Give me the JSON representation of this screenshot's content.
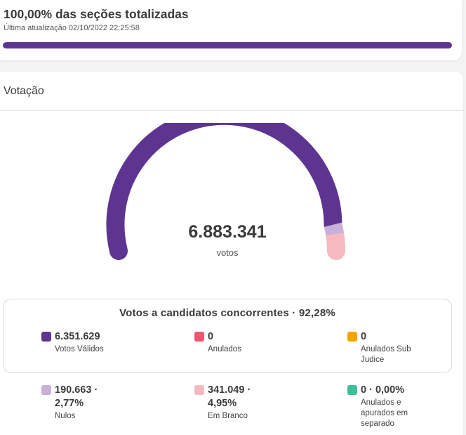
{
  "header": {
    "title": "100,00% das seções totalizadas",
    "updated": "Última atualização 02/10/2022 22:25:58",
    "progress_fraction": 1.0,
    "progress_color": "#5d3591"
  },
  "voting": {
    "section_title": "Votação",
    "total": "6.883.341",
    "total_unit": "votos",
    "gauge_fractions": {
      "valid": 0.9228,
      "nulos": 0.0277,
      "branco": 0.0495
    },
    "gauge_colors": {
      "valid": "#5d3591",
      "nulos": "#c8b1d8",
      "branco": "#f7b9c0",
      "track": "#eeeeee"
    }
  },
  "candidates": {
    "title": "Votos a candidatos concorrentes · 92,28%",
    "items": [
      {
        "value": "6.351.629",
        "label": "Votos Válidos",
        "color": "#5d3591"
      },
      {
        "value": "0",
        "label": "Anulados",
        "color": "#f0566e"
      },
      {
        "value": "0",
        "label": "Anulados Sub Judice",
        "color": "#f5a100"
      }
    ]
  },
  "others": {
    "items": [
      {
        "value": "190.663 · 2,77%",
        "label": "Nulos",
        "color": "#c8b1d8"
      },
      {
        "value": "341.049 · 4,95%",
        "label": "Em Branco",
        "color": "#f7b9c0"
      },
      {
        "value": "0 · 0,00%",
        "label": "Anulados e apurados em separado",
        "color": "#3dbf9a"
      }
    ]
  }
}
